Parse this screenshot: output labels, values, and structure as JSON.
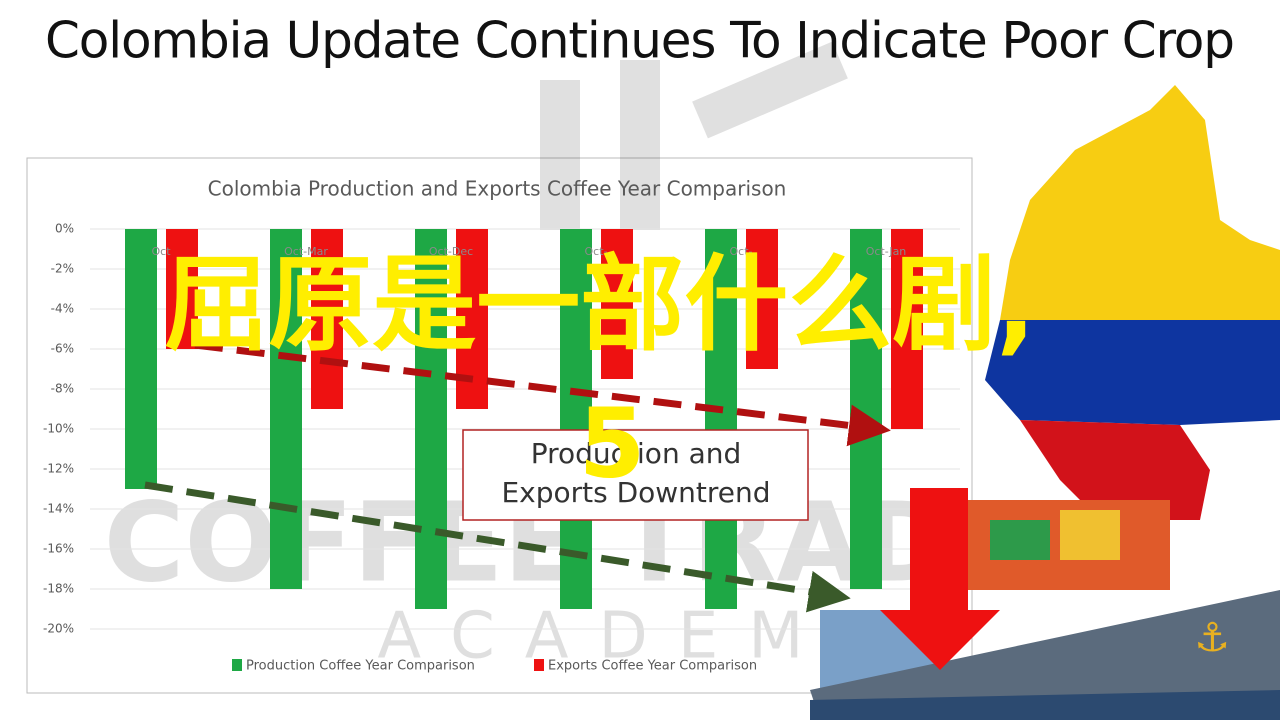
{
  "slide_title": "Colombia Update Continues To Indicate Poor Crop",
  "overlay_text": "屈原是一部什么剧,",
  "overlay_number": "5",
  "annotation": [
    "Production and",
    "Exports Downtrend"
  ],
  "watermark": [
    "COFFEE TRADING",
    "ACADEMY"
  ],
  "chart_data": {
    "type": "bar",
    "title": "Colombia Production and Exports Coffee Year Comparison",
    "categories": [
      "Oct",
      "Oct-Mar",
      "Oct-Dec",
      "Oct-",
      "Oct-",
      "Oct-Jan"
    ],
    "series": [
      {
        "name": "Production Coffee Year Comparison",
        "color": "#1ea845",
        "values": [
          -13,
          -18,
          -19,
          -19,
          -19,
          -18
        ]
      },
      {
        "name": "Exports Coffee Year Comparison",
        "color": "#ee1111",
        "values": [
          -6,
          -9,
          -9,
          -7.5,
          -7,
          -10
        ]
      }
    ],
    "ylim": [
      -20,
      0
    ],
    "yticks": [
      {
        "value": 0,
        "label": "0%"
      },
      {
        "value": -2,
        "label": "-2%"
      },
      {
        "value": -4,
        "label": "-4%"
      },
      {
        "value": -6,
        "label": "-6%"
      },
      {
        "value": -8,
        "label": "-8%"
      },
      {
        "value": -10,
        "label": "-10%"
      },
      {
        "value": -12,
        "label": "-12%"
      },
      {
        "value": -14,
        "label": "-14%"
      },
      {
        "value": -16,
        "label": "-16%"
      },
      {
        "value": -18,
        "label": "-18%"
      },
      {
        "value": -20,
        "label": "-20%"
      }
    ],
    "grid": true,
    "legend": "bottom"
  }
}
